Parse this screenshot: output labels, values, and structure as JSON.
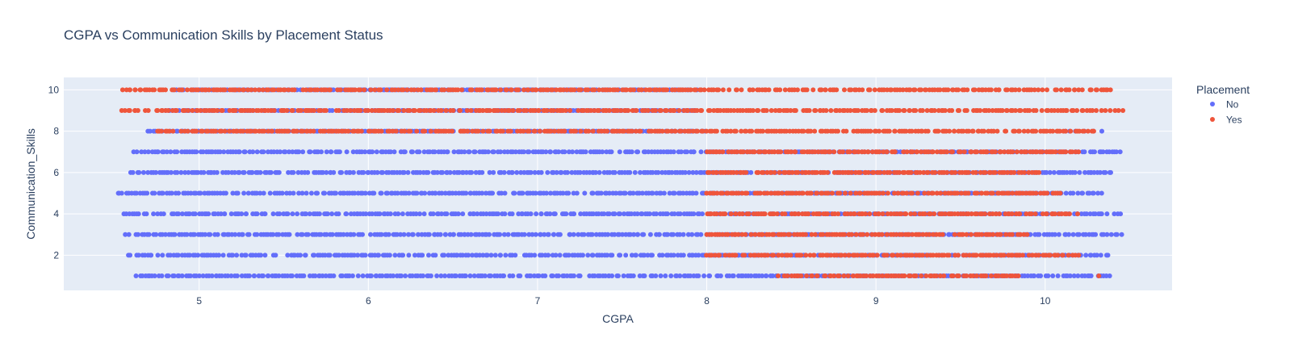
{
  "chart_data": {
    "type": "scatter",
    "title": "CGPA vs Communication Skills by Placement Status",
    "xlabel": "CGPA",
    "ylabel": "Communication_Skills",
    "xlim": [
      4.2,
      10.75
    ],
    "ylim": [
      0.3,
      10.6
    ],
    "x_ticks": [
      5,
      6,
      7,
      8,
      9,
      10
    ],
    "y_ticks": [
      2,
      4,
      6,
      8,
      10
    ],
    "grid": true,
    "legend": {
      "title": "Placement",
      "position": "top-right outside"
    },
    "colors": {
      "plot_bg": "#e5ecf6",
      "grid": "#ffffff",
      "No": "#636efa",
      "Yes": "#ef553b"
    },
    "marker_note": "dense horizontal bands at each integer Communication_Skills level; intervals give approximate CGPA coverage per band",
    "series": [
      {
        "name": "No",
        "color": "#636efa",
        "bands": [
          {
            "y": 1,
            "ranges": [
              [
                4.63,
                10.38
              ]
            ]
          },
          {
            "y": 2,
            "ranges": [
              [
                4.58,
                10.38
              ]
            ]
          },
          {
            "y": 3,
            "ranges": [
              [
                4.56,
                10.45
              ]
            ]
          },
          {
            "y": 4,
            "ranges": [
              [
                4.55,
                10.45
              ]
            ]
          },
          {
            "y": 5,
            "ranges": [
              [
                4.5,
                10.35
              ]
            ]
          },
          {
            "y": 6,
            "ranges": [
              [
                4.6,
                10.4
              ]
            ]
          },
          {
            "y": 7,
            "ranges": [
              [
                4.62,
                10.46
              ]
            ]
          },
          {
            "y": 8,
            "ranges": [
              [
                4.7,
                8.0
              ]
            ],
            "sparse": [
              [
                10.1,
                10.45
              ]
            ]
          },
          {
            "y": 9,
            "ranges": [
              [
                4.8,
                7.95
              ]
            ]
          },
          {
            "y": 10,
            "ranges": [
              [
                4.85,
                7.95
              ]
            ]
          }
        ]
      },
      {
        "name": "Yes",
        "color": "#ef553b",
        "bands": [
          {
            "y": 1,
            "ranges": [
              [
                8.42,
                9.85
              ]
            ],
            "sparse": [
              [
                10.33,
                10.37
              ]
            ]
          },
          {
            "y": 2,
            "ranges": [
              [
                8.0,
                10.2
              ]
            ]
          },
          {
            "y": 3,
            "ranges": [
              [
                8.0,
                9.9
              ]
            ]
          },
          {
            "y": 4,
            "ranges": [
              [
                8.0,
                10.2
              ]
            ]
          },
          {
            "y": 5,
            "ranges": [
              [
                8.0,
                10.1
              ]
            ]
          },
          {
            "y": 6,
            "ranges": [
              [
                8.0,
                10.0
              ]
            ]
          },
          {
            "y": 7,
            "ranges": [
              [
                8.0,
                10.2
              ]
            ]
          },
          {
            "y": 8,
            "ranges": [
              [
                4.75,
                10.3
              ]
            ]
          },
          {
            "y": 9,
            "ranges": [
              [
                4.55,
                10.47
              ]
            ]
          },
          {
            "y": 10,
            "ranges": [
              [
                4.55,
                10.4
              ]
            ]
          }
        ]
      }
    ]
  }
}
